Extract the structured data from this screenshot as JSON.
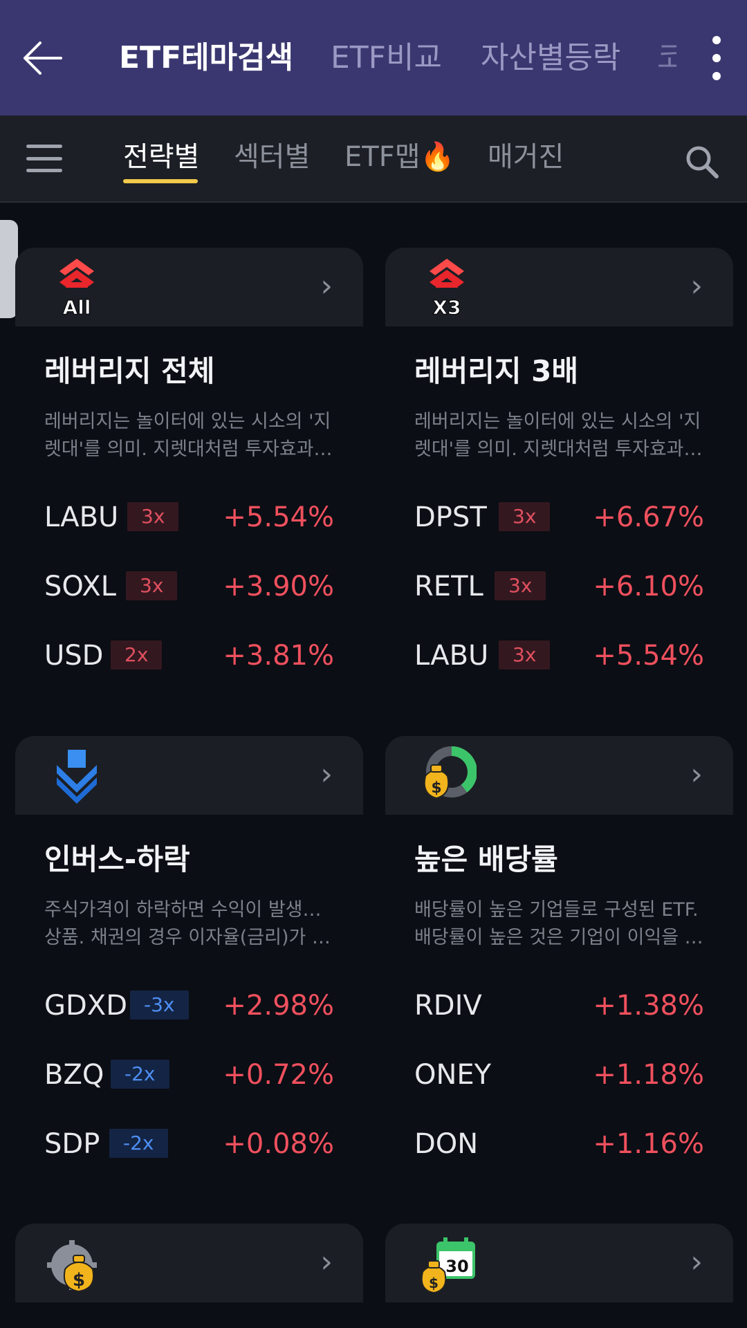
{
  "header": {
    "tabs": [
      "ETF테마검색",
      "ETF비교",
      "자산별등락"
    ],
    "overflow_tab": "코"
  },
  "subnav": {
    "tabs": [
      "전략별",
      "섹터별",
      "ETF맵🔥",
      "매거진"
    ]
  },
  "cards": [
    {
      "icon": "leverage-all-icon",
      "icon_text": "All",
      "title": "레버리지 전체",
      "desc": [
        "레버리지는 놀이터에 있는 시소의 '지",
        "렛대'를 의미. 지렛대처럼 투자효과…"
      ],
      "rows": [
        {
          "ticker": "LABU",
          "badge": "3x",
          "pct": "+5.54%"
        },
        {
          "ticker": "SOXL",
          "badge": "3x",
          "pct": "+3.90%"
        },
        {
          "ticker": "USD",
          "badge": "2x",
          "pct": "+3.81%"
        }
      ]
    },
    {
      "icon": "leverage-3x-icon",
      "icon_text": "X3",
      "title": "레버리지 3배",
      "desc": [
        "레버리지는 놀이터에 있는 시소의 '지",
        "렛대'를 의미. 지렛대처럼 투자효과…"
      ],
      "rows": [
        {
          "ticker": "DPST",
          "badge": "3x",
          "pct": "+6.67%"
        },
        {
          "ticker": "RETL",
          "badge": "3x",
          "pct": "+6.10%"
        },
        {
          "ticker": "LABU",
          "badge": "3x",
          "pct": "+5.54%"
        }
      ]
    },
    {
      "icon": "inverse-down-arrow-icon",
      "title": "인버스-하락",
      "desc": [
        "주식가격이 하락하면 수익이 발생하는",
        "상품. 채권의 경우 이자율(금리)가 상…"
      ],
      "rows": [
        {
          "ticker": "GDXD",
          "badge": "-3x",
          "pct": "+2.98%"
        },
        {
          "ticker": "BZQ",
          "badge": "-2x",
          "pct": "+0.72%"
        },
        {
          "ticker": "SDP",
          "badge": "-2x",
          "pct": "+0.08%"
        }
      ]
    },
    {
      "icon": "dividend-money-bag-icon",
      "title": "높은 배당률",
      "desc": [
        "배당률이 높은 기업들로 구성된 ETF.",
        "배당률이 높은 것은 기업이 이익을 …"
      ],
      "rows": [
        {
          "ticker": "RDIV",
          "pct": "+1.38%"
        },
        {
          "ticker": "ONEY",
          "pct": "+1.18%"
        },
        {
          "ticker": "DON",
          "pct": "+1.16%"
        }
      ]
    },
    {
      "icon": "money-gear-icon"
    },
    {
      "icon": "monthly-dividend-calendar-icon",
      "icon_text": "30"
    }
  ],
  "colors": {
    "header_bg": "#3a3770",
    "page_bg": "#0b0e14",
    "card_head_bg": "#1b1e24",
    "tab_underline": "#f2c94c",
    "up_red": "#f0505e",
    "down_blue": "#4d8ef2"
  }
}
